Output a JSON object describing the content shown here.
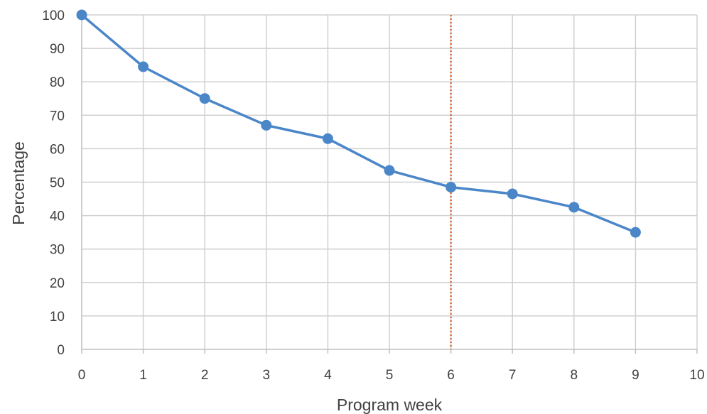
{
  "chart_data": {
    "type": "line",
    "title": "",
    "xlabel": "Program week",
    "ylabel": "Percentage",
    "xlim": [
      0,
      10
    ],
    "ylim": [
      0,
      100
    ],
    "x_ticks": [
      "0",
      "1",
      "2",
      "3",
      "4",
      "5",
      "6",
      "7",
      "8",
      "9",
      "10"
    ],
    "y_ticks": [
      "0",
      "10",
      "20",
      "30",
      "40",
      "50",
      "60",
      "70",
      "80",
      "90",
      "100"
    ],
    "grid": true,
    "legend": "none",
    "series": [
      {
        "color": "#4a86c8",
        "marker": "circle",
        "x": [
          0,
          1,
          2,
          3,
          4,
          5,
          6,
          7,
          8,
          9
        ],
        "y": [
          100,
          84.5,
          75,
          67,
          63,
          53.5,
          48.5,
          46.5,
          42.5,
          35
        ]
      }
    ],
    "reference_lines": [
      {
        "orientation": "vertical",
        "x": 6,
        "style": "dotted",
        "color": "#e0662e"
      }
    ]
  }
}
